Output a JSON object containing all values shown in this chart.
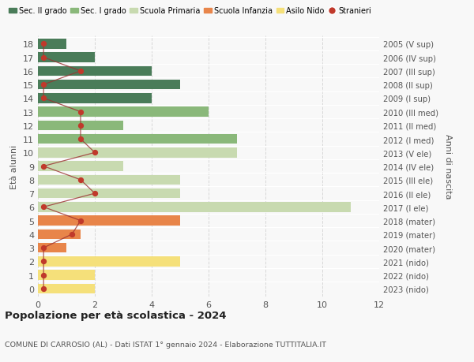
{
  "ages": [
    0,
    1,
    2,
    3,
    4,
    5,
    6,
    7,
    8,
    9,
    10,
    11,
    12,
    13,
    14,
    15,
    16,
    17,
    18
  ],
  "right_labels": [
    "2023 (nido)",
    "2022 (nido)",
    "2021 (nido)",
    "2020 (mater)",
    "2019 (mater)",
    "2018 (mater)",
    "2017 (I ele)",
    "2016 (II ele)",
    "2015 (III ele)",
    "2014 (IV ele)",
    "2013 (V ele)",
    "2012 (I med)",
    "2011 (II med)",
    "2010 (III med)",
    "2009 (I sup)",
    "2008 (II sup)",
    "2007 (III sup)",
    "2006 (IV sup)",
    "2005 (V sup)"
  ],
  "bar_values": [
    2,
    2,
    5,
    1,
    1.5,
    5,
    11,
    5,
    5,
    3,
    7,
    7,
    3,
    6,
    4,
    5,
    4,
    2,
    1
  ],
  "bar_colors": [
    "#f5e07a",
    "#f5e07a",
    "#f5e07a",
    "#e8854a",
    "#e8854a",
    "#e8854a",
    "#c8dab0",
    "#c8dab0",
    "#c8dab0",
    "#c8dab0",
    "#c8dab0",
    "#8ab87a",
    "#8ab87a",
    "#8ab87a",
    "#4a7c59",
    "#4a7c59",
    "#4a7c59",
    "#4a7c59",
    "#4a7c59"
  ],
  "stranieri_values": [
    0.2,
    0.2,
    0.2,
    0.2,
    1.2,
    1.5,
    0.2,
    2,
    1.5,
    0.2,
    2,
    1.5,
    1.5,
    1.5,
    0.2,
    0.2,
    1.5,
    0.2,
    0.2
  ],
  "legend_labels": [
    "Sec. II grado",
    "Sec. I grado",
    "Scuola Primaria",
    "Scuola Infanzia",
    "Asilo Nido",
    "Stranieri"
  ],
  "legend_colors": [
    "#4a7c59",
    "#8ab87a",
    "#c8dab0",
    "#e8854a",
    "#f5e07a",
    "#c0392b"
  ],
  "title": "Popolazione per età scolastica - 2024",
  "subtitle": "COMUNE DI CARROSIO (AL) - Dati ISTAT 1° gennaio 2024 - Elaborazione TUTTITALIA.IT",
  "ylabel_left": "Età alunni",
  "ylabel_right": "Anni di nascita",
  "xlim": [
    0,
    12
  ],
  "xticks": [
    0,
    2,
    4,
    6,
    8,
    10,
    12
  ],
  "bg_color": "#f8f8f8",
  "grid_color": "#d8d8d8",
  "bar_height": 0.72
}
